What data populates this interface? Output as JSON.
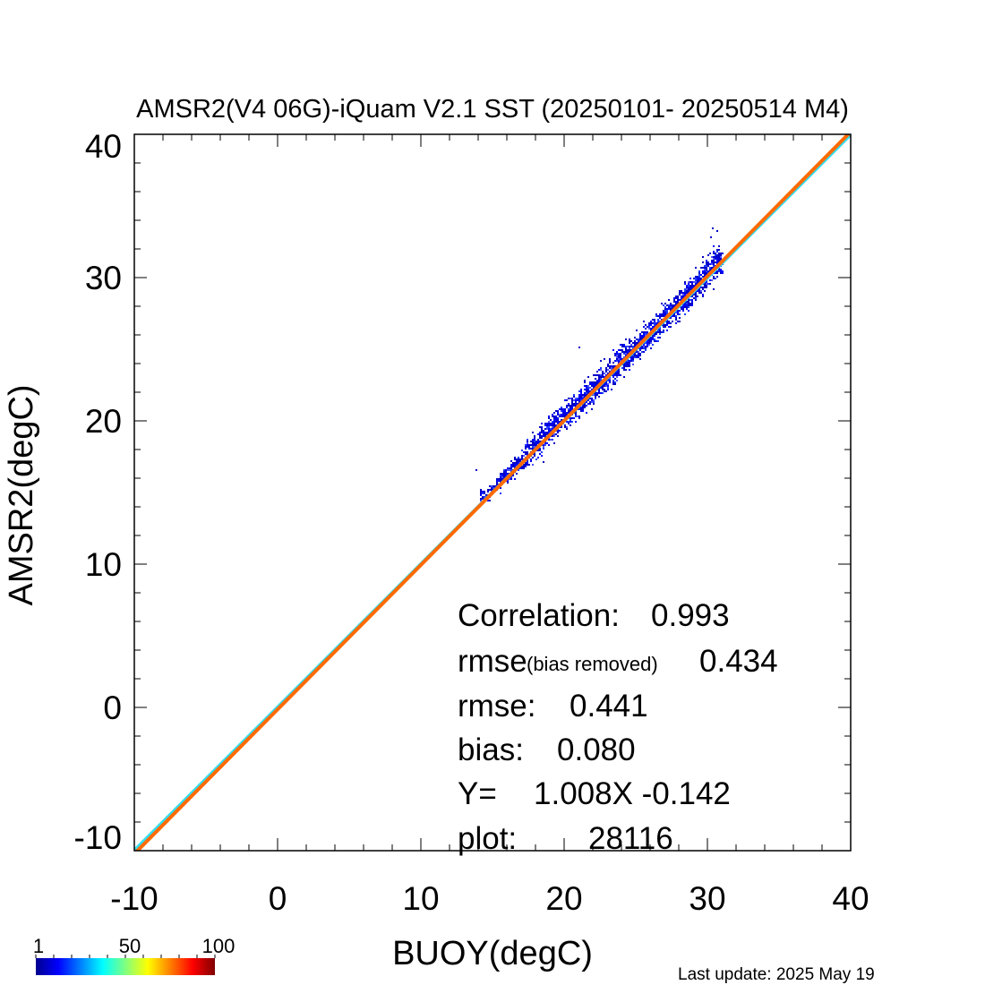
{
  "chart_data": {
    "type": "scatter",
    "title": "AMSR2(V4 06G)-iQuam V2.1 SST (20250101- 20250514 M4)",
    "xlabel": "BUOY(degC)",
    "ylabel": "AMSR2(degC)",
    "xlim": [
      -10,
      40
    ],
    "ylim": [
      -10,
      40
    ],
    "x_ticks": [
      "-10",
      "0",
      "10",
      "20",
      "30",
      "40"
    ],
    "y_ticks": [
      "-10",
      "0",
      "10",
      "20",
      "30",
      "40"
    ],
    "density_scatter": {
      "description_points": [
        {
          "x": 14.5,
          "y": 14.8
        },
        {
          "x": 17.0,
          "y": 17.3
        },
        {
          "x": 19.0,
          "y": 19.5
        },
        {
          "x": 21.0,
          "y": 21.3
        },
        {
          "x": 23.0,
          "y": 23.3
        },
        {
          "x": 25.0,
          "y": 25.2
        },
        {
          "x": 27.0,
          "y": 27.2
        },
        {
          "x": 29.0,
          "y": 29.3
        },
        {
          "x": 30.5,
          "y": 31.0
        }
      ],
      "x_range": [
        14.0,
        31.0
      ],
      "y_range": [
        14.5,
        33.5
      ]
    },
    "lines": [
      {
        "kind": "one-to-one",
        "color": "#33ddee",
        "slope": 1.0,
        "intercept": 0.0
      },
      {
        "kind": "regression",
        "color": "#ff6a00",
        "slope": 1.008,
        "intercept": -0.142
      }
    ],
    "stats": {
      "correlation_label": "Correlation:",
      "correlation_value": "0.993",
      "rmse_br_label": "rmse",
      "rmse_br_sub": "(bias removed)",
      "rmse_br_value": "0.434",
      "rmse_label": "rmse:",
      "rmse_value": "0.441",
      "bias_label": "bias:",
      "bias_value": "0.080",
      "fit_label": "Y=",
      "fit_value": "1.008X -0.142",
      "plot_label": "plot:",
      "plot_value": "28116"
    },
    "colorbar": {
      "min_label": "1",
      "mid_label": "50",
      "max_label": "100",
      "colors": [
        "#00008f",
        "#0000ff",
        "#0080ff",
        "#00ffff",
        "#80ff80",
        "#ffff00",
        "#ff8000",
        "#ff0000",
        "#800000"
      ]
    },
    "footer": "Last update: 2025 May 19"
  }
}
